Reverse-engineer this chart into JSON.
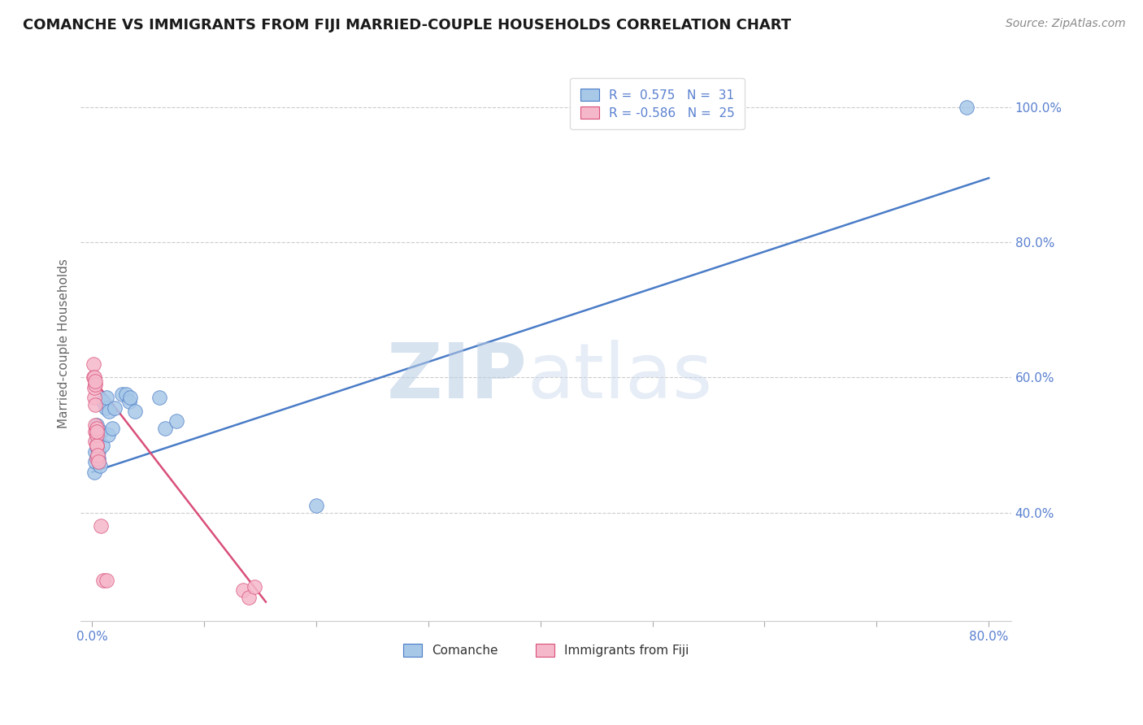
{
  "title": "COMANCHE VS IMMIGRANTS FROM FIJI MARRIED-COUPLE HOUSEHOLDS CORRELATION CHART",
  "source": "Source: ZipAtlas.com",
  "ylabel": "Married-couple Households",
  "blue_R": 0.575,
  "blue_N": 31,
  "pink_R": -0.586,
  "pink_N": 25,
  "blue_color": "#a8c8e8",
  "pink_color": "#f5b8ca",
  "blue_line_color": "#4a7cc7",
  "pink_line_color": "#d94f7a",
  "legend_label_blue": "Comanche",
  "legend_label_pink": "Immigrants from Fiji",
  "watermark_zip": "ZIP",
  "watermark_atlas": "atlas",
  "blue_points_x": [
    0.002,
    0.003,
    0.003,
    0.004,
    0.004,
    0.004,
    0.005,
    0.005,
    0.005,
    0.006,
    0.006,
    0.007,
    0.008,
    0.009,
    0.01,
    0.012,
    0.013,
    0.014,
    0.015,
    0.018,
    0.02,
    0.027,
    0.03,
    0.033,
    0.034,
    0.038,
    0.06,
    0.065,
    0.075,
    0.2,
    0.78
  ],
  "blue_points_y": [
    0.46,
    0.475,
    0.49,
    0.505,
    0.515,
    0.53,
    0.48,
    0.495,
    0.51,
    0.48,
    0.49,
    0.47,
    0.52,
    0.5,
    0.565,
    0.555,
    0.57,
    0.515,
    0.55,
    0.525,
    0.555,
    0.575,
    0.575,
    0.565,
    0.57,
    0.55,
    0.57,
    0.525,
    0.535,
    0.41,
    1.0
  ],
  "pink_points_x": [
    0.001,
    0.001,
    0.002,
    0.002,
    0.002,
    0.003,
    0.003,
    0.003,
    0.003,
    0.003,
    0.003,
    0.004,
    0.004,
    0.004,
    0.004,
    0.004,
    0.004,
    0.005,
    0.006,
    0.008,
    0.01,
    0.013,
    0.135,
    0.14,
    0.145
  ],
  "pink_points_y": [
    0.6,
    0.62,
    0.57,
    0.585,
    0.6,
    0.56,
    0.59,
    0.505,
    0.52,
    0.53,
    0.595,
    0.5,
    0.515,
    0.525,
    0.48,
    0.5,
    0.52,
    0.485,
    0.475,
    0.38,
    0.3,
    0.3,
    0.285,
    0.275,
    0.29
  ],
  "blue_trendline_x": [
    0.0,
    0.8
  ],
  "blue_trendline_y": [
    0.46,
    0.895
  ],
  "pink_trendline_x": [
    0.0,
    0.155
  ],
  "pink_trendline_y": [
    0.6,
    0.268
  ],
  "x_tick_positions": [
    0.0,
    0.1,
    0.2,
    0.3,
    0.4,
    0.5,
    0.6,
    0.7,
    0.8
  ],
  "x_tick_show_labels": [
    0,
    8
  ],
  "x_tick_labels": [
    "0.0%",
    "",
    "",
    "",
    "",
    "",
    "",
    "",
    "80.0%"
  ],
  "y_ticks_right": [
    0.4,
    0.6,
    0.8,
    1.0
  ],
  "y_tick_labels_right": [
    "40.0%",
    "60.0%",
    "80.0%",
    "100.0%"
  ],
  "xlim": [
    -0.01,
    0.82
  ],
  "ylim": [
    0.24,
    1.06
  ],
  "background_color": "#ffffff",
  "grid_color": "#cccccc",
  "title_color": "#1a1a1a",
  "source_color": "#888888",
  "tick_color": "#5a80d0",
  "ylabel_color": "#666666",
  "title_fontsize": 13,
  "axis_fontsize": 11,
  "tick_fontsize": 11,
  "legend_fontsize": 11,
  "source_fontsize": 10
}
